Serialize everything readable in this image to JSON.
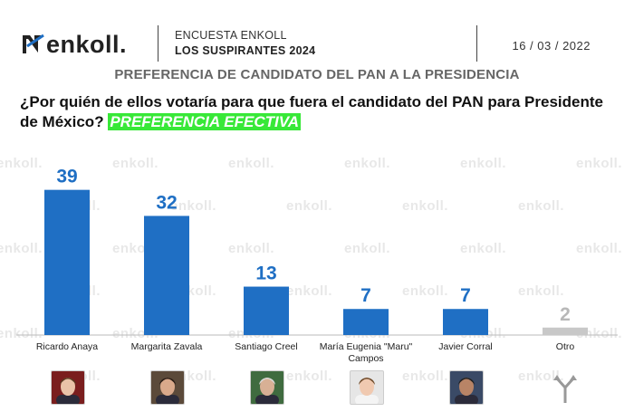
{
  "header": {
    "brand": "enkoll.",
    "survey_label": "ENCUESTA ENKOLL",
    "survey_name": "LOS SUSPIRANTES 2024",
    "date": "16 / 03 / 2022"
  },
  "chart_title": "PREFERENCIA DE CANDIDATO DEL PAN A LA PRESIDENCIA",
  "question": {
    "text": "¿Por quién de ellos votaría para que fuera el candidato del PAN para Presidente de México?",
    "highlight": "PREFERENCIA EFECTIVA"
  },
  "watermark": "enkoll.",
  "colors": {
    "bar": "#1f6fc4",
    "bar_other": "#c8c8c8",
    "label_other": "#b8b8b8",
    "highlight": "#38e838"
  },
  "chart_data": {
    "type": "bar",
    "title": "PREFERENCIA DE CANDIDATO DEL PAN A LA PRESIDENCIA",
    "xlabel": "",
    "ylabel": "",
    "ylim": [
      0,
      45
    ],
    "categories": [
      "Ricardo Anaya",
      "Margarita Zavala",
      "Santiago Creel",
      "María Eugenia \"Maru\" Campos",
      "Javier Corral",
      "Otro"
    ],
    "category_lines": [
      [
        "Ricardo Anaya"
      ],
      [
        "Margarita Zavala"
      ],
      [
        "Santiago Creel"
      ],
      [
        "María Eugenia \"Maru\"",
        "Campos"
      ],
      [
        "Javier Corral"
      ],
      [
        "Otro"
      ]
    ],
    "values": [
      39,
      32,
      13,
      7,
      7,
      2
    ],
    "value_labels": [
      "39",
      "32",
      "13",
      "7",
      "7",
      "2"
    ],
    "grid": false,
    "legend": "none"
  },
  "photos": [
    {
      "name": "Ricardo Anaya",
      "icon": "portrait-icon"
    },
    {
      "name": "Margarita Zavala",
      "icon": "portrait-icon"
    },
    {
      "name": "Santiago Creel",
      "icon": "portrait-icon"
    },
    {
      "name": "María Eugenia Campos",
      "icon": "portrait-icon"
    },
    {
      "name": "Javier Corral",
      "icon": "portrait-icon"
    },
    {
      "name": "Otro",
      "icon": "split-arrows-icon"
    }
  ]
}
